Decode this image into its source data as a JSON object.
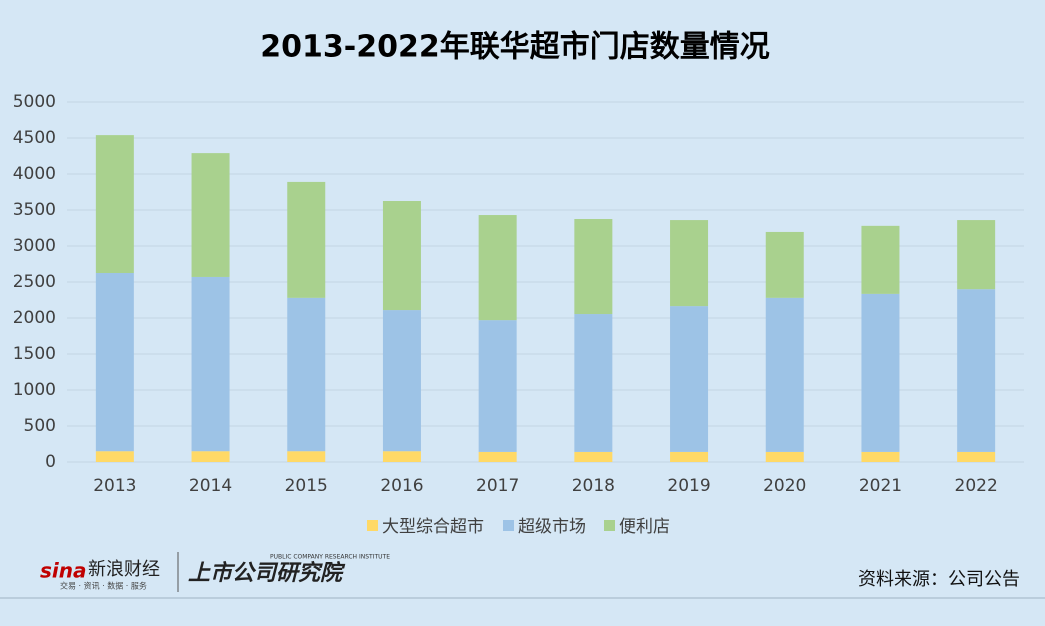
{
  "chart_data": {
    "type": "stacked_bar",
    "title": "2013-2022年联华超市门店数量情况",
    "categories": [
      "2013",
      "2014",
      "2015",
      "2016",
      "2017",
      "2018",
      "2019",
      "2020",
      "2021",
      "2022"
    ],
    "series": [
      {
        "name": "大型综合超市",
        "color": "#ffd966",
        "values": [
          150,
          150,
          150,
          150,
          140,
          140,
          140,
          140,
          140,
          140
        ]
      },
      {
        "name": "超级市场",
        "color": "#9dc3e6",
        "values": [
          2475,
          2420,
          2130,
          1960,
          1830,
          1915,
          2025,
          2140,
          2195,
          2260
        ]
      },
      {
        "name": "便利店",
        "color": "#a9d18e",
        "values": [
          1915,
          1720,
          1610,
          1515,
          1460,
          1320,
          1195,
          915,
          945,
          960
        ]
      }
    ],
    "ylim": [
      0,
      5000
    ],
    "yticks": [
      0,
      500,
      1000,
      1500,
      2000,
      2500,
      3000,
      3500,
      4000,
      4500,
      5000
    ],
    "grid": true,
    "legend": "bottom"
  },
  "footer": {
    "logo_sina": "sina",
    "logo_name": "新浪财经",
    "logo_tagline": "交易 · 资讯 · 数据 · 服务",
    "institute": "上市公司研究院",
    "institute_en": "PUBLIC COMPANY RESEARCH INSTITUTE",
    "source": "资料来源：公司公告"
  }
}
